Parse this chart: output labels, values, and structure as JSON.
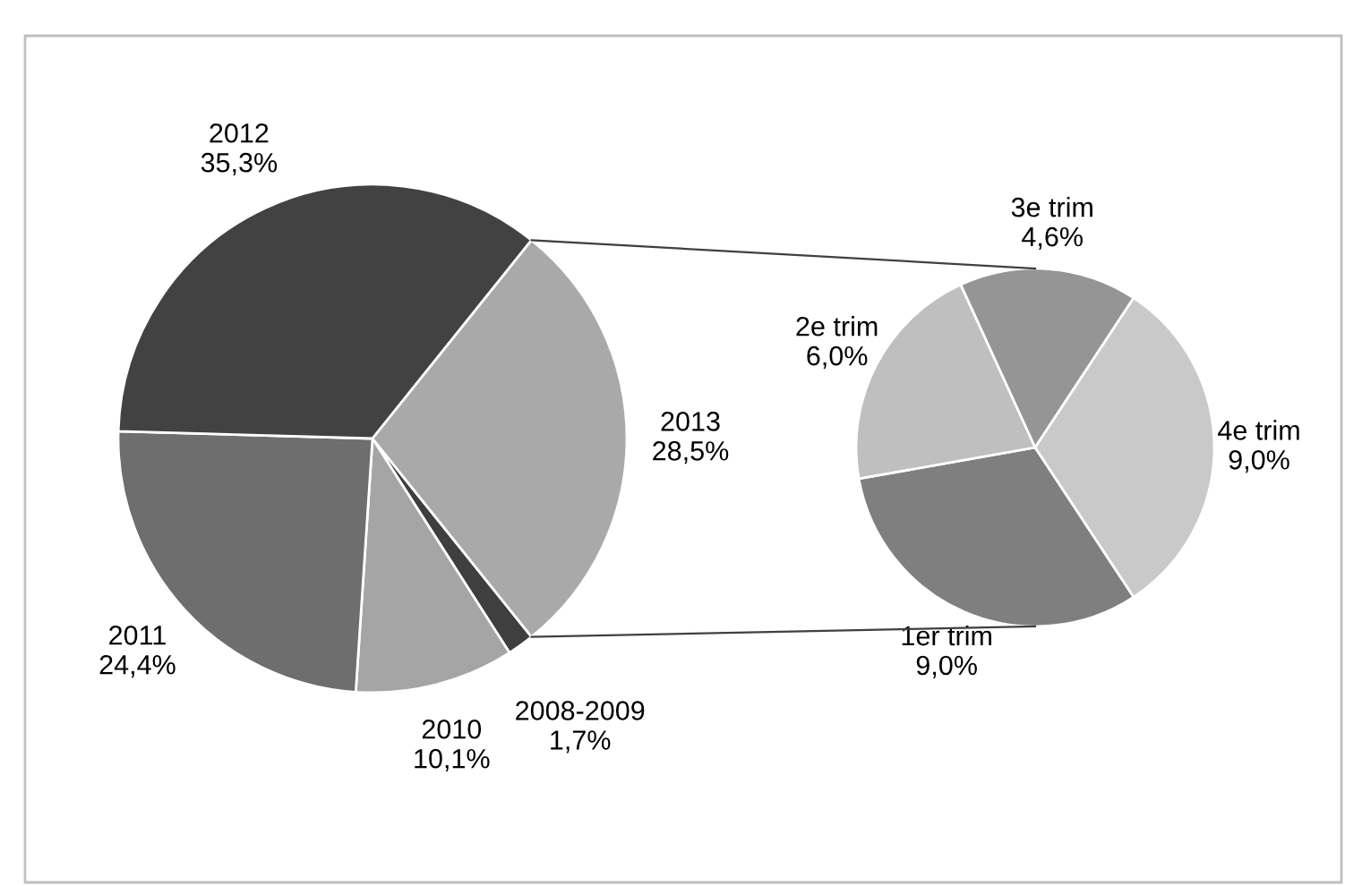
{
  "chart_data": [
    {
      "type": "pie",
      "categories": [
        "2008-2009",
        "2010",
        "2011",
        "2012",
        "2013"
      ],
      "values": [
        1.7,
        10.1,
        24.4,
        35.3,
        28.5
      ],
      "value_labels": [
        "1,7%",
        "10,1%",
        "24,4%",
        "35,3%",
        "28,5%"
      ],
      "colors": [
        "#3f3f3f",
        "#a5a5a5",
        "#6e6e6e",
        "#424242",
        "#a9a9a9"
      ]
    },
    {
      "type": "pie",
      "categories": [
        "1er trim",
        "2e trim",
        "3e trim",
        "4e trim"
      ],
      "values": [
        9.0,
        6.0,
        4.6,
        9.0
      ],
      "value_labels": [
        "9,0%",
        "6,0%",
        "4,6%",
        "9,0%"
      ],
      "colors": [
        "#7f7f7f",
        "#bfbfbf",
        "#959595",
        "#c9c9c9"
      ]
    }
  ]
}
